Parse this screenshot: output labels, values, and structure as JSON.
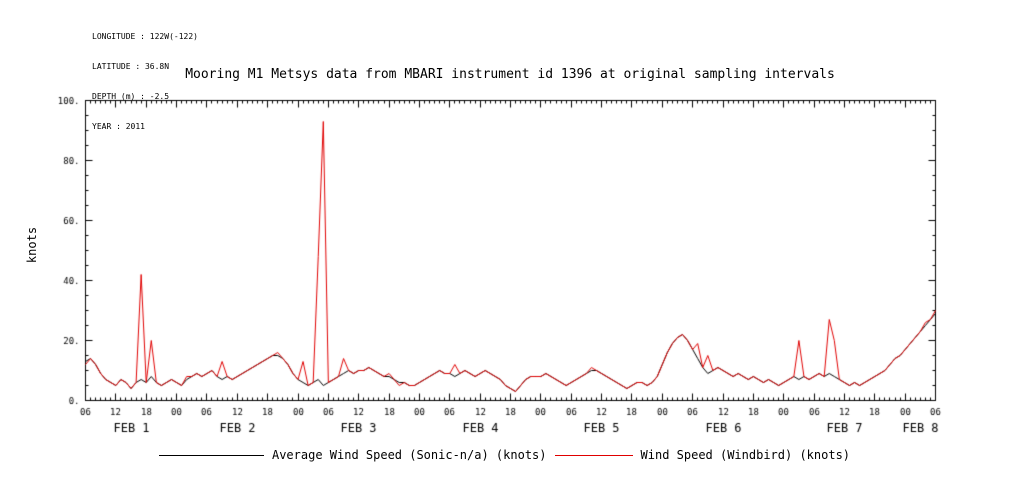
{
  "header": {
    "lines": [
      "LONGITUDE : 122W(-122)",
      "LATITUDE : 36.8N",
      "DEPTH (m) : -2.5",
      "YEAR : 2011"
    ]
  },
  "chart_data": {
    "type": "line",
    "title": "Mooring M1 Metsys data from MBARI instrument id 1396 at original sampling intervals",
    "ylabel": "knots",
    "ylim": [
      0,
      100
    ],
    "y_ticks": [
      0,
      20,
      40,
      60,
      80,
      100
    ],
    "y_tick_labels": [
      "0.",
      "20.",
      "40.",
      "60.",
      "80.",
      "100."
    ],
    "y_major_tick": 20,
    "y_minor_tick": 5,
    "x_major_tick_hours": 6,
    "x_axis_note": "time axis spans Feb 1 06:00 to Feb 8 06:00, 2011; samples every 1 hour",
    "x_tick_labels": [
      "06",
      "12",
      "18",
      "00",
      "06",
      "12",
      "18",
      "00",
      "06",
      "12",
      "18",
      "00",
      "06",
      "12",
      "18",
      "00",
      "06",
      "12",
      "18",
      "00",
      "06",
      "12",
      "18",
      "00",
      "06",
      "12",
      "18",
      "00",
      "06"
    ],
    "day_labels": [
      "FEB 1",
      "FEB 2",
      "FEB 3",
      "FEB 4",
      "FEB 5",
      "FEB 6",
      "FEB 7",
      "FEB 8"
    ],
    "grid": false,
    "legend_position": "bottom",
    "series": [
      {
        "name": "Average Wind Speed (Sonic-n/a) (knots)",
        "color": "#000000",
        "sample_interval_hours": 1,
        "values": [
          13,
          14,
          12,
          9,
          7,
          6,
          5,
          7,
          6,
          4,
          6,
          7,
          6,
          8,
          6,
          5,
          6,
          7,
          6,
          5,
          7,
          8,
          9,
          8,
          9,
          10,
          8,
          7,
          8,
          7,
          8,
          9,
          10,
          11,
          12,
          13,
          14,
          15,
          15,
          14,
          12,
          9,
          7,
          6,
          5,
          6,
          7,
          5,
          6,
          7,
          8,
          9,
          10,
          9,
          10,
          10,
          11,
          10,
          9,
          8,
          8,
          7,
          6,
          6,
          5,
          5,
          6,
          7,
          8,
          9,
          10,
          9,
          9,
          8,
          9,
          10,
          9,
          8,
          9,
          10,
          9,
          8,
          7,
          5,
          4,
          3,
          5,
          7,
          8,
          8,
          8,
          9,
          8,
          7,
          6,
          5,
          6,
          7,
          8,
          9,
          10,
          10,
          9,
          8,
          7,
          6,
          5,
          4,
          5,
          6,
          6,
          5,
          6,
          8,
          12,
          16,
          19,
          21,
          22,
          20,
          17,
          14,
          11,
          9,
          10,
          11,
          10,
          9,
          8,
          9,
          8,
          7,
          8,
          7,
          6,
          7,
          6,
          5,
          6,
          7,
          8,
          7,
          8,
          7,
          8,
          9,
          8,
          9,
          8,
          7,
          6,
          5,
          6,
          5,
          6,
          7,
          8,
          9,
          10,
          12,
          14,
          15,
          17,
          19,
          21,
          23,
          25,
          27,
          29
        ]
      },
      {
        "name": "Wind Speed (Windbird) (knots)",
        "color": "#e00000",
        "sample_interval_hours": 1,
        "values": [
          12,
          14,
          12,
          9,
          7,
          6,
          5,
          7,
          6,
          4,
          6,
          42,
          6,
          20,
          6,
          5,
          6,
          7,
          6,
          5,
          8,
          8,
          9,
          8,
          9,
          10,
          8,
          13,
          8,
          7,
          8,
          9,
          10,
          11,
          12,
          13,
          14,
          15,
          16,
          14,
          12,
          9,
          7,
          13,
          5,
          6,
          48,
          93,
          6,
          7,
          8,
          14,
          10,
          9,
          10,
          10,
          11,
          10,
          9,
          8,
          9,
          7,
          5,
          6,
          5,
          5,
          6,
          7,
          8,
          9,
          10,
          9,
          9,
          12,
          9,
          10,
          9,
          8,
          9,
          10,
          9,
          8,
          7,
          5,
          4,
          3,
          5,
          7,
          8,
          8,
          8,
          9,
          8,
          7,
          6,
          5,
          6,
          7,
          8,
          9,
          11,
          10,
          9,
          8,
          7,
          6,
          5,
          4,
          5,
          6,
          6,
          5,
          6,
          8,
          12,
          16,
          19,
          21,
          22,
          20,
          17,
          19,
          11,
          15,
          10,
          11,
          10,
          9,
          8,
          9,
          8,
          7,
          8,
          7,
          6,
          7,
          6,
          5,
          6,
          7,
          8,
          20,
          8,
          7,
          8,
          9,
          8,
          27,
          20,
          7,
          6,
          5,
          6,
          5,
          6,
          7,
          8,
          9,
          10,
          12,
          14,
          15,
          17,
          19,
          21,
          23,
          26,
          27,
          30
        ]
      }
    ]
  }
}
